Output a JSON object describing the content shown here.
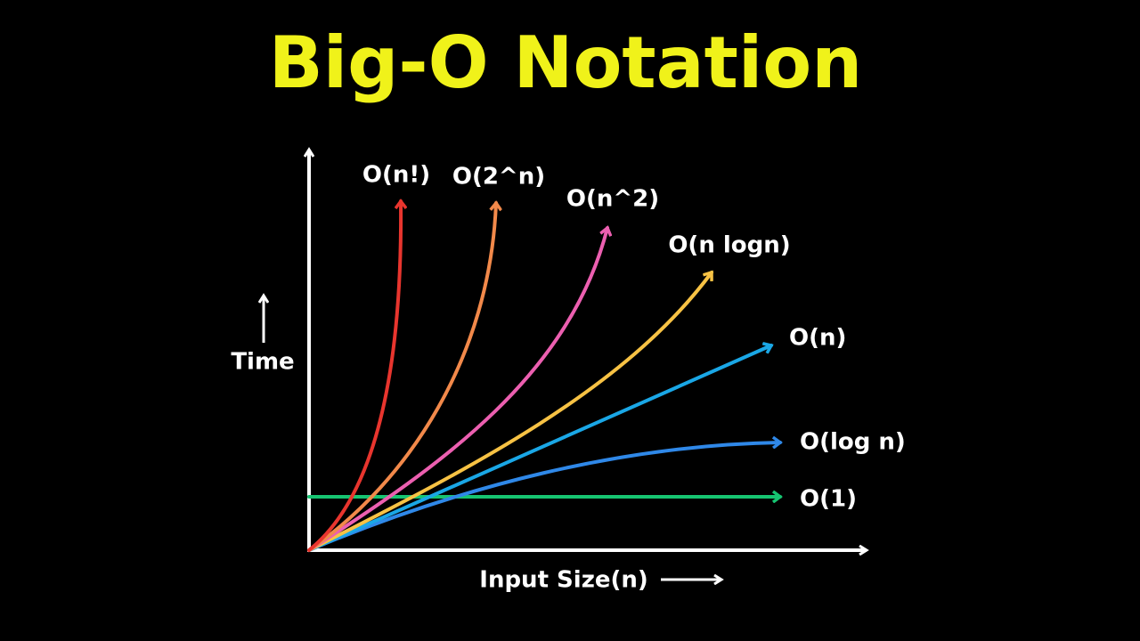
{
  "title": "Big-O Notation",
  "axes": {
    "y_label": "Time",
    "x_label": "Input Size(n)"
  },
  "curves": [
    {
      "label": "O(n!)"
    },
    {
      "label": "O(2^n)"
    },
    {
      "label": "O(n^2)"
    },
    {
      "label": "O(n logn)"
    },
    {
      "label": "O(n)"
    },
    {
      "label": "O(log n)"
    },
    {
      "label": "O(1)"
    }
  ]
}
